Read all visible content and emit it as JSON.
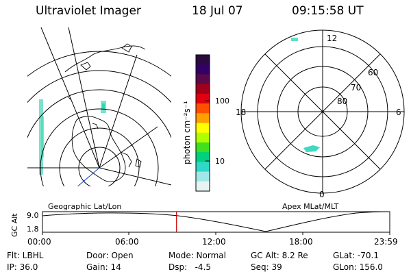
{
  "header": {
    "instrument": "Ultraviolet Imager",
    "date": "18 Jul 07",
    "time": "09:15:58 UT"
  },
  "left_panel": {
    "caption": "Geographic Lat/Lon"
  },
  "right_panel": {
    "caption": "Apex MLat/MLT",
    "mlt_labels": {
      "top": "12",
      "left": "18",
      "right": "6",
      "bottom": "0"
    },
    "lat_labels": [
      "60",
      "70",
      "80"
    ]
  },
  "colorbar": {
    "unit_label": "photon cm⁻²s⁻¹",
    "ticks": [
      "100",
      "10"
    ],
    "colors_top_to_bottom": [
      "#2a0a40",
      "#330066",
      "#5a0a4a",
      "#a0001a",
      "#e00010",
      "#ff5000",
      "#ffa000",
      "#ffff00",
      "#b0ff00",
      "#40e020",
      "#00d080",
      "#30d8c8",
      "#a0e8e8",
      "#e8f4f4"
    ]
  },
  "timeline": {
    "axis_label": "GC Alt",
    "y_ticks": [
      "9.0",
      "1.8"
    ],
    "x_ticks": [
      "00:00",
      "06:00",
      "12:00",
      "18:00",
      "23:59"
    ],
    "current_time_fraction": 0.386
  },
  "info": {
    "row1": [
      "Flt: LBHL",
      "Door: Open",
      "Mode: Normal",
      "GC Alt: 8.2 Re",
      "GLat: -70.1"
    ],
    "row2": [
      "IP: 36.0",
      "Gain: 14",
      "Dsp:   -4.5",
      "Seq: 39",
      "GLon: 156.0"
    ]
  }
}
